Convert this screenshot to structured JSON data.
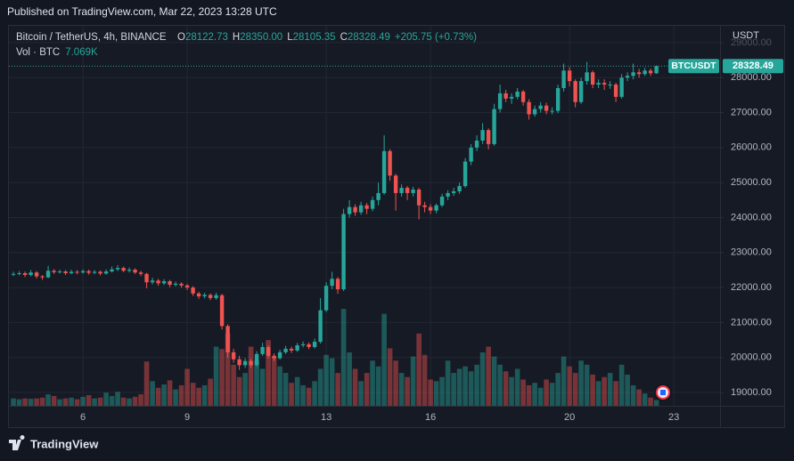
{
  "published": "Published on TradingView.com, Mar 22, 2023 13:28 UTC",
  "brand": "TradingView",
  "chart_data": {
    "type": "candlestick",
    "title": "Bitcoin / TetherUS, 4h, BINANCE",
    "ohlc": [
      {
        "label": "O",
        "value": "28122.73"
      },
      {
        "label": "H",
        "value": "28350.00"
      },
      {
        "label": "L",
        "value": "28105.35"
      },
      {
        "label": "C",
        "value": "28328.49"
      }
    ],
    "change": "+205.75 (+0.73%)",
    "volume_title": "Vol · BTC",
    "volume_value_label": "7.069K",
    "y_unit": "USDT",
    "symbol_tag": "BTCUSDT",
    "last_price_label": "28328.49",
    "up_color": "#26a69a",
    "down_color": "#ef5350",
    "grid": true,
    "xlim": [
      3.87,
      24.33
    ],
    "xticks": [
      6,
      9,
      13,
      16,
      20,
      23
    ],
    "ylim": [
      18620,
      29480
    ],
    "yticks": [
      {
        "value": 19000,
        "label": "19000.00"
      },
      {
        "value": 20000,
        "label": "20000.00"
      },
      {
        "value": 21000,
        "label": "21000.00"
      },
      {
        "value": 22000,
        "label": "22000.00"
      },
      {
        "value": 23000,
        "label": "23000.00"
      },
      {
        "value": 24000,
        "label": "24000.00"
      },
      {
        "value": 25000,
        "label": "25000.00"
      },
      {
        "value": 26000,
        "label": "26000.00"
      },
      {
        "value": 27000,
        "label": "27000.00"
      },
      {
        "value": 28000,
        "label": "28000.00"
      },
      {
        "value": 29000,
        "label": "29000.00"
      }
    ],
    "volume_ylim": [
      0,
      130000
    ],
    "x": [
      4,
      4.167,
      4.333,
      4.5,
      4.667,
      4.833,
      5,
      5.167,
      5.333,
      5.5,
      5.667,
      5.833,
      6,
      6.167,
      6.333,
      6.5,
      6.667,
      6.833,
      7,
      7.167,
      7.333,
      7.5,
      7.667,
      7.833,
      8,
      8.167,
      8.333,
      8.5,
      8.667,
      8.833,
      9,
      9.167,
      9.333,
      9.5,
      9.667,
      9.833,
      10,
      10.167,
      10.333,
      10.5,
      10.667,
      10.833,
      11,
      11.167,
      11.333,
      11.5,
      11.667,
      11.833,
      12,
      12.167,
      12.333,
      12.5,
      12.667,
      12.833,
      13,
      13.167,
      13.333,
      13.5,
      13.667,
      13.833,
      14,
      14.167,
      14.333,
      14.5,
      14.667,
      14.833,
      15,
      15.167,
      15.333,
      15.5,
      15.667,
      15.833,
      16,
      16.167,
      16.333,
      16.5,
      16.667,
      16.833,
      17,
      17.167,
      17.333,
      17.5,
      17.667,
      17.833,
      18,
      18.167,
      18.333,
      18.5,
      18.667,
      18.833,
      19,
      19.167,
      19.333,
      19.5,
      19.667,
      19.833,
      20,
      20.167,
      20.333,
      20.5,
      20.667,
      20.833,
      21,
      21.167,
      21.333,
      21.5,
      21.667,
      21.833,
      22,
      22.167,
      22.333,
      22.5
    ],
    "open": [
      22370,
      22390,
      22410,
      22360,
      22430,
      22320,
      22290,
      22480,
      22440,
      22460,
      22410,
      22450,
      22430,
      22470,
      22420,
      22450,
      22400,
      22460,
      22520,
      22560,
      22480,
      22510,
      22430,
      22390,
      22150,
      22200,
      22120,
      22180,
      22080,
      22110,
      22060,
      22000,
      21830,
      21750,
      21790,
      21700,
      21780,
      20900,
      20150,
      19950,
      19780,
      19900,
      19780,
      20100,
      20300,
      20050,
      19980,
      20150,
      20250,
      20200,
      20350,
      20380,
      20300,
      20450,
      21350,
      22050,
      22250,
      21950,
      24100,
      24300,
      24150,
      24350,
      24250,
      24500,
      24700,
      25900,
      25200,
      24700,
      24850,
      24700,
      24800,
      24350,
      24300,
      24200,
      24350,
      24600,
      24700,
      24750,
      24900,
      25600,
      26000,
      26200,
      26500,
      26100,
      27100,
      27550,
      27400,
      27450,
      27600,
      27300,
      26950,
      27100,
      27200,
      27050,
      27050,
      27700,
      28200,
      27900,
      27300,
      27900,
      28150,
      27800,
      27850,
      27800,
      27800,
      27450,
      28000,
      28050,
      28150,
      28100,
      28200,
      28122.73
    ],
    "high": [
      22450,
      22470,
      22460,
      22500,
      22470,
      22360,
      22620,
      22530,
      22510,
      22500,
      22510,
      22500,
      22520,
      22510,
      22500,
      22490,
      22520,
      22600,
      22640,
      22600,
      22570,
      22550,
      22480,
      22420,
      22280,
      22250,
      22240,
      22220,
      22170,
      22150,
      22100,
      22040,
      21880,
      21850,
      21830,
      21850,
      21820,
      20950,
      20250,
      20050,
      19980,
      19960,
      20180,
      20420,
      20350,
      20120,
      20220,
      20330,
      20310,
      20420,
      20460,
      20430,
      20540,
      21700,
      22150,
      22450,
      22300,
      24250,
      24500,
      24380,
      24450,
      24420,
      24600,
      25000,
      26350,
      25950,
      25250,
      24950,
      24900,
      24880,
      24850,
      24450,
      24380,
      24400,
      24680,
      24780,
      24850,
      25000,
      25700,
      26100,
      26350,
      26700,
      26550,
      27250,
      27800,
      27650,
      27550,
      27700,
      27650,
      27380,
      27200,
      27300,
      27280,
      27150,
      27800,
      28400,
      28300,
      27950,
      28000,
      28450,
      28200,
      27950,
      27950,
      27900,
      27850,
      28100,
      28150,
      28400,
      28250,
      28280,
      28260,
      28350.0
    ],
    "low": [
      22330,
      22350,
      22300,
      22320,
      22260,
      22220,
      22270,
      22390,
      22400,
      22360,
      22380,
      22380,
      22400,
      22370,
      22380,
      22350,
      22370,
      22430,
      22470,
      22440,
      22430,
      22390,
      22330,
      21980,
      22090,
      22050,
      22070,
      22010,
      22030,
      21990,
      21930,
      21760,
      21680,
      21690,
      21640,
      21650,
      20800,
      20000,
      19850,
      19650,
      19700,
      19700,
      19730,
      20050,
      19980,
      19900,
      19940,
      20100,
      20130,
      20160,
      20290,
      20240,
      20260,
      20400,
      21300,
      21950,
      21820,
      21900,
      24000,
      24050,
      24080,
      24100,
      24180,
      24350,
      24650,
      25050,
      24200,
      24600,
      24500,
      24600,
      23950,
      24150,
      24100,
      24120,
      24300,
      24500,
      24620,
      24680,
      24850,
      25500,
      25900,
      26100,
      25950,
      26050,
      27000,
      27300,
      27250,
      27380,
      27200,
      26800,
      26880,
      27000,
      26950,
      26950,
      26980,
      27600,
      27750,
      27150,
      27250,
      27800,
      27700,
      27700,
      27650,
      27680,
      27300,
      27400,
      27900,
      27950,
      28000,
      28050,
      28050,
      28105.35
    ],
    "close": [
      22390,
      22410,
      22360,
      22430,
      22320,
      22290,
      22480,
      22440,
      22460,
      22410,
      22450,
      22430,
      22470,
      22420,
      22450,
      22400,
      22460,
      22520,
      22560,
      22480,
      22510,
      22430,
      22390,
      22150,
      22200,
      22120,
      22180,
      22080,
      22110,
      22060,
      22000,
      21830,
      21750,
      21790,
      21700,
      21780,
      20900,
      20150,
      19950,
      19780,
      19900,
      19780,
      20100,
      20300,
      20050,
      19980,
      20150,
      20250,
      20200,
      20350,
      20380,
      20300,
      20450,
      21350,
      22050,
      22250,
      21950,
      24100,
      24300,
      24150,
      24350,
      24250,
      24500,
      24700,
      25900,
      25200,
      24700,
      24850,
      24700,
      24800,
      24350,
      24300,
      24200,
      24350,
      24600,
      24700,
      24750,
      24900,
      25600,
      26000,
      26200,
      26500,
      26100,
      27100,
      27550,
      27400,
      27450,
      27600,
      27300,
      26950,
      27100,
      27200,
      27050,
      27050,
      27700,
      28200,
      27900,
      27300,
      27900,
      28150,
      27800,
      27850,
      27800,
      27800,
      27450,
      28000,
      28050,
      28150,
      28100,
      28200,
      28122.73,
      28328.49
    ],
    "volume": [
      9000,
      8000,
      9000,
      8500,
      9000,
      10000,
      14000,
      12000,
      8000,
      9000,
      10000,
      8000,
      11000,
      13000,
      9000,
      10000,
      16000,
      12000,
      17000,
      10000,
      9000,
      11000,
      14000,
      54000,
      30000,
      22000,
      26000,
      31000,
      20000,
      25000,
      45000,
      28000,
      22000,
      25000,
      33000,
      72000,
      69000,
      88000,
      50000,
      35000,
      40000,
      72000,
      55000,
      45000,
      80000,
      60000,
      48000,
      40000,
      28000,
      35000,
      25000,
      22000,
      30000,
      45000,
      62000,
      58000,
      40000,
      118000,
      65000,
      45000,
      30000,
      40000,
      55000,
      48000,
      112000,
      70000,
      55000,
      40000,
      35000,
      60000,
      88000,
      62000,
      32000,
      30000,
      35000,
      55000,
      40000,
      45000,
      48000,
      42000,
      50000,
      65000,
      72000,
      60000,
      50000,
      42000,
      35000,
      45000,
      32000,
      25000,
      28000,
      22000,
      32000,
      28000,
      40000,
      60000,
      48000,
      40000,
      55000,
      50000,
      38000,
      30000,
      35000,
      40000,
      30000,
      50000,
      38000,
      25000,
      20000,
      15000,
      10000,
      7069
    ]
  }
}
